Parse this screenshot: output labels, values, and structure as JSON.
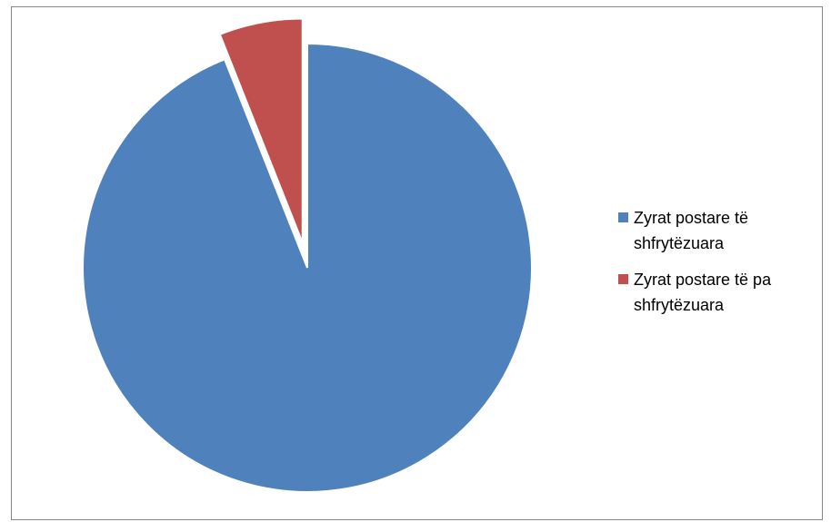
{
  "chart_data": {
    "type": "pie",
    "title": "",
    "labels": [
      "Zyrat postare të shfrytëzuara",
      "Zyrat postare të pa shfrytëzuara"
    ],
    "values": [
      94,
      6
    ],
    "colors": [
      "#4F81BD",
      "#C0504D"
    ],
    "exploded": [
      false,
      true
    ],
    "start_angle_deg": 0,
    "direction": "clockwise",
    "legend_position": "right"
  },
  "legend": {
    "items": [
      {
        "label": "Zyrat postare të shfrytëzuara",
        "color": "#4F81BD"
      },
      {
        "label": "Zyrat postare të pa shfrytëzuara",
        "color": "#C0504D"
      }
    ]
  }
}
